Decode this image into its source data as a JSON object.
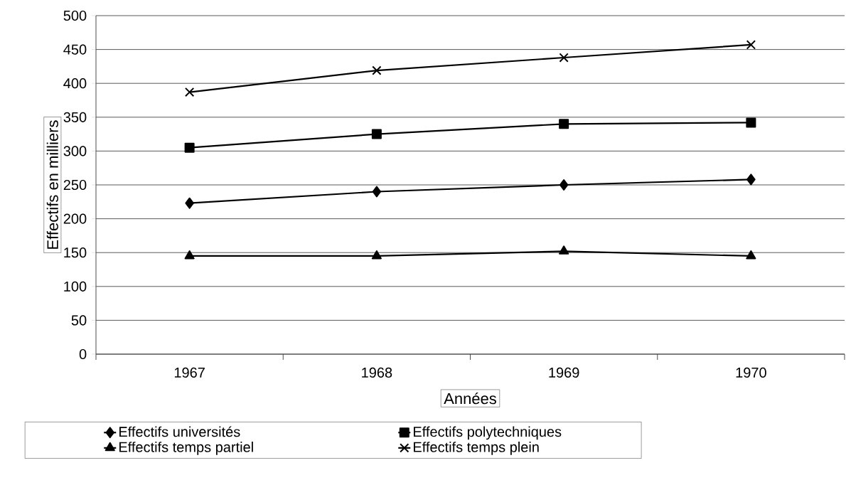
{
  "chart_data": {
    "type": "line",
    "xlabel": "Années",
    "ylabel": "Effectifs en milliers",
    "categories": [
      "1967",
      "1968",
      "1969",
      "1970"
    ],
    "series": [
      {
        "name": "Effectifs universités",
        "color": "#000000",
        "marker": "diamond",
        "values": [
          223,
          240,
          250,
          258
        ]
      },
      {
        "name": "Effectifs polytechniques",
        "color": "#000000",
        "marker": "square",
        "values": [
          305,
          325,
          340,
          342
        ]
      },
      {
        "name": "Effectifs temps partiel",
        "color": "#000000",
        "marker": "triangle",
        "values": [
          145,
          145,
          152,
          145
        ]
      },
      {
        "name": "Effectifs temps plein",
        "color": "#000000",
        "marker": "cross",
        "values": [
          387,
          419,
          438,
          457
        ]
      }
    ],
    "ylim": [
      0,
      500
    ],
    "yticks": [
      0,
      50,
      100,
      150,
      200,
      250,
      300,
      350,
      400,
      450,
      500
    ],
    "grid": "y",
    "legend": "bottom",
    "line_style": "solid"
  }
}
